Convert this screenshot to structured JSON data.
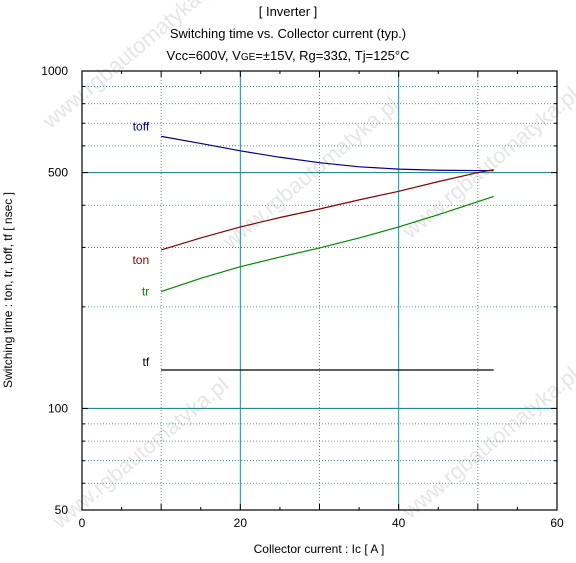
{
  "chart_data": {
    "type": "line",
    "title_lines": [
      "[ Inverter ]",
      "Switching time  vs.  Collector current  (typ.)"
    ],
    "conditions": {
      "vcc": "Vcc=600V, ",
      "vge_prefix": "V",
      "vge_sub": "GE",
      "vge_rest": "=±15V, Rg=33Ω, Tj=125°C"
    },
    "xlabel": "Collector current  :  Ic  [ A ]",
    "ylabel": "Switching time  :  ton, tr, toff, tf  [ nsec ]",
    "xlim": [
      0,
      60
    ],
    "ylim": [
      50,
      1000
    ],
    "yscale": "log",
    "grid": true,
    "x_ticks": [
      0,
      20,
      40,
      60
    ],
    "y_ticks_labeled": [
      50,
      100,
      500,
      1000
    ],
    "series": [
      {
        "name": "toff",
        "color": "#00008b",
        "x": [
          10,
          15,
          20,
          25,
          30,
          35,
          40,
          45,
          50,
          52
        ],
        "y": [
          640,
          610,
          580,
          555,
          535,
          520,
          512,
          508,
          507,
          507
        ]
      },
      {
        "name": "ton",
        "color": "#8b0000",
        "x": [
          10,
          15,
          20,
          25,
          30,
          35,
          40,
          45,
          50,
          52
        ],
        "y": [
          295,
          320,
          345,
          368,
          390,
          415,
          440,
          470,
          500,
          510
        ]
      },
      {
        "name": "tr",
        "color": "#008b00",
        "x": [
          10,
          15,
          20,
          25,
          30,
          35,
          40,
          45,
          50,
          52
        ],
        "y": [
          222,
          243,
          263,
          281,
          299,
          320,
          345,
          375,
          410,
          425
        ]
      },
      {
        "name": "tf",
        "color": "#000000",
        "x": [
          10,
          52
        ],
        "y": [
          130,
          130
        ]
      }
    ]
  },
  "watermark": "www.rgbautomatyka.pl"
}
